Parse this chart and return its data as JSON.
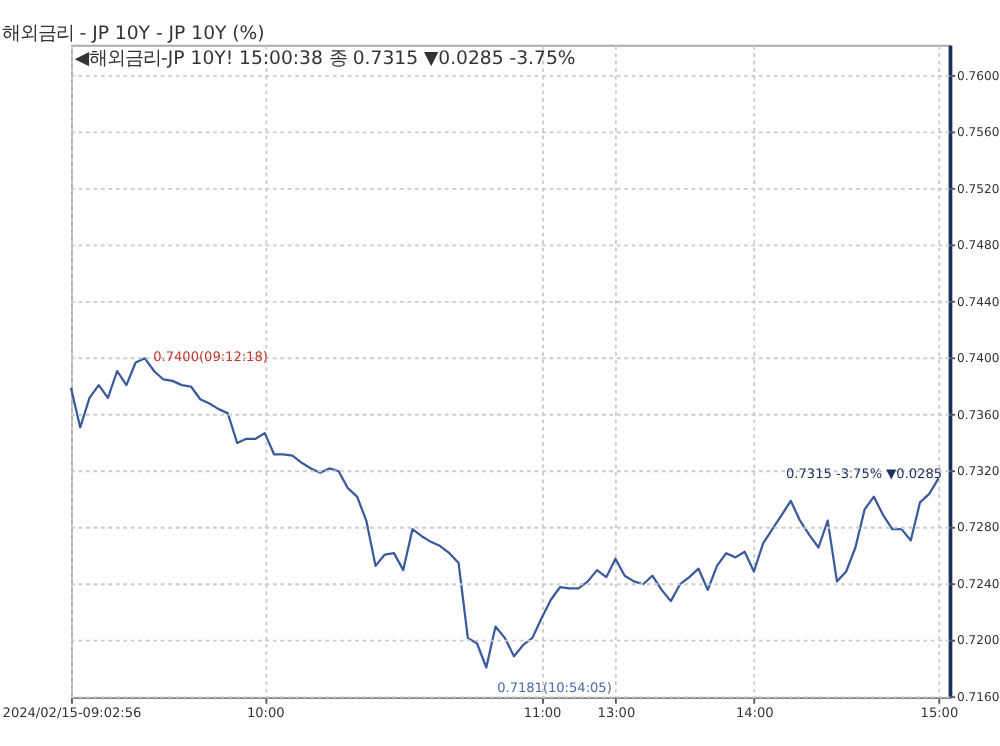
{
  "chart_data": {
    "type": "line",
    "title": "해외금리 - JP    10Y - JP 10Y (%)",
    "subtitle": "◀해외금리-JP 10Y! 15:00:38 종 0.7315 ▼0.0285 -3.75%",
    "categories": [
      "2024/02/15-09:02:56",
      null,
      null,
      null,
      null,
      null,
      null,
      null,
      null,
      null,
      null,
      null,
      null,
      null,
      null,
      null,
      null,
      null,
      null,
      null,
      null,
      "10:00",
      null,
      null,
      null,
      null,
      null,
      null,
      null,
      null,
      null,
      null,
      null,
      null,
      null,
      null,
      null,
      null,
      null,
      null,
      null,
      null,
      null,
      null,
      null,
      null,
      null,
      null,
      null,
      null,
      null,
      "11:00",
      null,
      null,
      null,
      null,
      null,
      null,
      null,
      "13:00",
      null,
      null,
      null,
      null,
      null,
      null,
      null,
      null,
      null,
      null,
      null,
      null,
      null,
      null,
      "14:00",
      null,
      null,
      null,
      null,
      null,
      null,
      null,
      null,
      null,
      null,
      null,
      null,
      null,
      null,
      null,
      null,
      null,
      null,
      null,
      "15:00"
    ],
    "series": [
      {
        "color": "#3a5a9c",
        "values": [
          0.7379,
          0.7351,
          0.7372,
          0.7381,
          0.7372,
          0.7391,
          0.7381,
          0.7397,
          0.74,
          0.7391,
          0.7385,
          0.7384,
          0.7381,
          0.738,
          0.7371,
          0.7368,
          0.7364,
          0.7361,
          0.734,
          0.7343,
          0.7343,
          0.7347,
          0.7332,
          0.7332,
          0.7331,
          0.7326,
          0.7322,
          0.7319,
          0.7322,
          0.732,
          0.7308,
          0.7302,
          0.7285,
          0.7253,
          0.7261,
          0.7262,
          0.725,
          0.7279,
          0.7274,
          0.727,
          0.7267,
          0.7262,
          0.7255,
          0.7202,
          0.7198,
          0.7181,
          0.721,
          0.7202,
          0.7189,
          0.7197,
          0.7202,
          0.7216,
          0.7229,
          0.7238,
          0.7237,
          0.7237,
          0.7242,
          0.725,
          0.7245,
          0.7258,
          0.7246,
          0.7242,
          0.724,
          0.7246,
          0.7236,
          0.7228,
          0.724,
          0.7245,
          0.7251,
          0.7236,
          0.7253,
          0.7262,
          0.7259,
          0.7263,
          0.7249,
          0.7269,
          0.7279,
          0.7289,
          0.7299,
          0.7285,
          0.7275,
          0.7266,
          0.7285,
          0.7242,
          0.7249,
          0.7266,
          0.7293,
          0.7302,
          0.7289,
          0.7279,
          0.7279,
          0.7271,
          0.7298,
          0.7304,
          0.7315
        ]
      }
    ],
    "ylim": [
      0.716,
      0.7622
    ],
    "yticks": [
      {
        "value": 0.716,
        "label": "0.7160"
      },
      {
        "value": 0.72,
        "label": "0.7200"
      },
      {
        "value": 0.724,
        "label": "0.7240"
      },
      {
        "value": 0.728,
        "label": "0.7280"
      },
      {
        "value": 0.732,
        "label": "0.7320"
      },
      {
        "value": 0.736,
        "label": "0.7360"
      },
      {
        "value": 0.74,
        "label": "0.7400"
      },
      {
        "value": 0.744,
        "label": "0.7440"
      },
      {
        "value": 0.748,
        "label": "0.7480"
      },
      {
        "value": 0.752,
        "label": "0.7520"
      },
      {
        "value": 0.756,
        "label": "0.7560"
      },
      {
        "value": 0.76,
        "label": "0.7600"
      }
    ],
    "annotations": [
      "0.7400(09:12:18)",
      "0.7181(10:54:05)",
      "0.7315 -3.75% ▼0.0285"
    ],
    "grid": true,
    "line_style": "solid",
    "marker": "none",
    "legend": false
  }
}
